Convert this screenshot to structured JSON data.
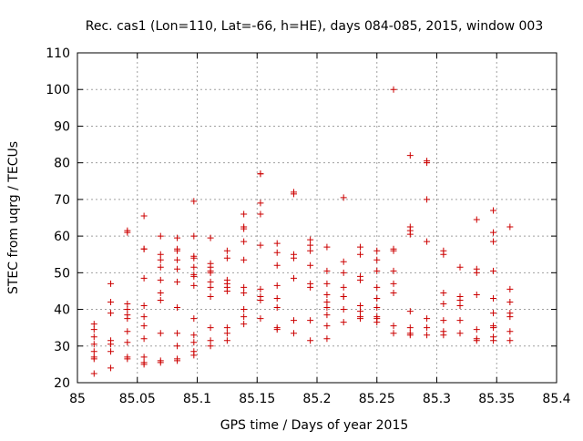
{
  "chart_data": {
    "type": "scatter",
    "title": "Rec. cas1 (Lon=110, Lat=-66, h=HE), days 084-085, 2015, window 003",
    "xlabel": "GPS time / Days of year 2015",
    "ylabel": "STEC from uqrg / TECUs",
    "xlim": [
      85,
      85.4
    ],
    "ylim": [
      20,
      110
    ],
    "xticks": [
      85,
      85.05,
      85.1,
      85.15,
      85.2,
      85.25,
      85.3,
      85.35,
      85.4
    ],
    "xtick_labels": [
      "85",
      "85.05",
      "85.1",
      "85.15",
      "85.2",
      "85.25",
      "85.3",
      "85.35",
      "85.4"
    ],
    "yticks": [
      20,
      30,
      40,
      50,
      60,
      70,
      80,
      90,
      100,
      110
    ],
    "ytick_labels": [
      "20",
      "30",
      "40",
      "50",
      "60",
      "70",
      "80",
      "90",
      "100",
      "110"
    ],
    "grid": true,
    "marker": "plus",
    "color": "#cc0000",
    "series": [
      {
        "x": [
          85.0139,
          85.0139,
          85.0139,
          85.0139,
          85.0139,
          85.0139,
          85.0139,
          85.0139,
          85.0278,
          85.0278,
          85.0278,
          85.0278,
          85.0278,
          85.0278,
          85.0278,
          85.0417,
          85.0417,
          85.0417,
          85.0417,
          85.0417,
          85.0417,
          85.0417,
          85.0417,
          85.0417,
          85.0417,
          85.0556,
          85.0556,
          85.0556,
          85.0556,
          85.0556,
          85.0556,
          85.0556,
          85.0556,
          85.0556,
          85.0556,
          85.0556,
          85.0694,
          85.0694,
          85.0694,
          85.0694,
          85.0694,
          85.0694,
          85.0694,
          85.0694,
          85.0694,
          85.0694,
          85.0833,
          85.0833,
          85.0833,
          85.0833,
          85.0833,
          85.0833,
          85.0833,
          85.0833,
          85.0833,
          85.0833,
          85.0833,
          85.0972,
          85.0972,
          85.0972,
          85.0972,
          85.0972,
          85.0972,
          85.0972,
          85.0972,
          85.0972,
          85.0972,
          85.0972,
          85.0972,
          85.0972,
          85.1111,
          85.1111,
          85.1111,
          85.1111,
          85.1111,
          85.1111,
          85.1111,
          85.1111,
          85.1111,
          85.1111,
          85.1111,
          85.125,
          85.125,
          85.125,
          85.125,
          85.125,
          85.125,
          85.125,
          85.125,
          85.125,
          85.1389,
          85.1389,
          85.1389,
          85.1389,
          85.1389,
          85.1389,
          85.1389,
          85.1389,
          85.1389,
          85.1389,
          85.1528,
          85.1528,
          85.1528,
          85.1528,
          85.1528,
          85.1528,
          85.1528,
          85.1528,
          85.1528,
          85.1667,
          85.1667,
          85.1667,
          85.1667,
          85.1667,
          85.1667,
          85.1667,
          85.1667,
          85.1806,
          85.1806,
          85.1806,
          85.1806,
          85.1806,
          85.1806,
          85.1806,
          85.1944,
          85.1944,
          85.1944,
          85.1944,
          85.1944,
          85.1944,
          85.1944,
          85.1944,
          85.2083,
          85.2083,
          85.2083,
          85.2083,
          85.2083,
          85.2083,
          85.2083,
          85.2083,
          85.2083,
          85.2222,
          85.2222,
          85.2222,
          85.2222,
          85.2222,
          85.2222,
          85.2222,
          85.2222,
          85.2361,
          85.2361,
          85.2361,
          85.2361,
          85.2361,
          85.2361,
          85.2361,
          85.2361,
          85.25,
          85.25,
          85.25,
          85.25,
          85.25,
          85.25,
          85.25,
          85.25,
          85.25,
          85.2639,
          85.2639,
          85.2639,
          85.2639,
          85.2639,
          85.2639,
          85.2639,
          85.2639,
          85.2778,
          85.2778,
          85.2778,
          85.2778,
          85.2778,
          85.2778,
          85.2778,
          85.2778,
          85.2917,
          85.2917,
          85.2917,
          85.2917,
          85.2917,
          85.2917,
          85.2917,
          85.3056,
          85.3056,
          85.3056,
          85.3056,
          85.3056,
          85.3056,
          85.3056,
          85.3194,
          85.3194,
          85.3194,
          85.3194,
          85.3194,
          85.3194,
          85.3333,
          85.3333,
          85.3333,
          85.3333,
          85.3333,
          85.3333,
          85.3333,
          85.3472,
          85.3472,
          85.3472,
          85.3472,
          85.3472,
          85.3472,
          85.3472,
          85.3472,
          85.3472,
          85.3472,
          85.3611,
          85.3611,
          85.3611,
          85.3611,
          85.3611,
          85.3611,
          85.3611
        ],
        "y": [
          36,
          34.5,
          32.5,
          30.5,
          28.5,
          27,
          26.5,
          22.5,
          47,
          42,
          39,
          31.5,
          30.5,
          28.5,
          24,
          61.5,
          61,
          41.5,
          40,
          38.5,
          37.5,
          34,
          31,
          27,
          26.5,
          65.5,
          56.5,
          56.5,
          48.5,
          41,
          38,
          35.5,
          32,
          27,
          25.5,
          25,
          60,
          55,
          53.5,
          51.5,
          48,
          44.5,
          42.5,
          33.5,
          26,
          25.5,
          59.5,
          56.5,
          56,
          53.5,
          51,
          47.5,
          40.5,
          33.5,
          30,
          26.5,
          26,
          69.5,
          60,
          54.5,
          54,
          51.5,
          49.5,
          49,
          46.5,
          37.5,
          33,
          31,
          28.5,
          27.5,
          59.5,
          52.5,
          51.5,
          50.5,
          50,
          47.5,
          46,
          43.5,
          35,
          31.5,
          30,
          56,
          54,
          48,
          47,
          46,
          45,
          35,
          33.5,
          31.5,
          66,
          62.5,
          62,
          58.5,
          53.5,
          46,
          44.5,
          40,
          38,
          36,
          77,
          77,
          69,
          66,
          57.5,
          45.5,
          43.5,
          42.5,
          37.5,
          58,
          55.5,
          52,
          46.5,
          43,
          40.5,
          35,
          34.5,
          72,
          71.5,
          55,
          54,
          48.5,
          37,
          33.5,
          59,
          57.5,
          56,
          52,
          47,
          46,
          37,
          31.5,
          57,
          50.5,
          47,
          44,
          42,
          40.5,
          38.5,
          35.5,
          32,
          70.5,
          53,
          50,
          46,
          43.5,
          43.5,
          40,
          36.5,
          57,
          55,
          49,
          48,
          41,
          39.5,
          38,
          37.5,
          56,
          53.5,
          50.5,
          46,
          43,
          40.5,
          38,
          37.5,
          36.5,
          100,
          56.5,
          56,
          50.5,
          47,
          44.5,
          35.5,
          33.5,
          82,
          62.5,
          61.5,
          60.5,
          39.5,
          35,
          33.5,
          33,
          80.5,
          80,
          70,
          58.5,
          37.5,
          35,
          33,
          56,
          55,
          44.5,
          41.5,
          37,
          34,
          33,
          51.5,
          43.5,
          42.5,
          41,
          37,
          33.5,
          64.5,
          51,
          50,
          44,
          34.5,
          32,
          31.5,
          67,
          61,
          58.5,
          50.5,
          43,
          39,
          35.5,
          35,
          32.5,
          31.5,
          62.5,
          45.5,
          42,
          39,
          38,
          34,
          31.5
        ]
      }
    ]
  }
}
